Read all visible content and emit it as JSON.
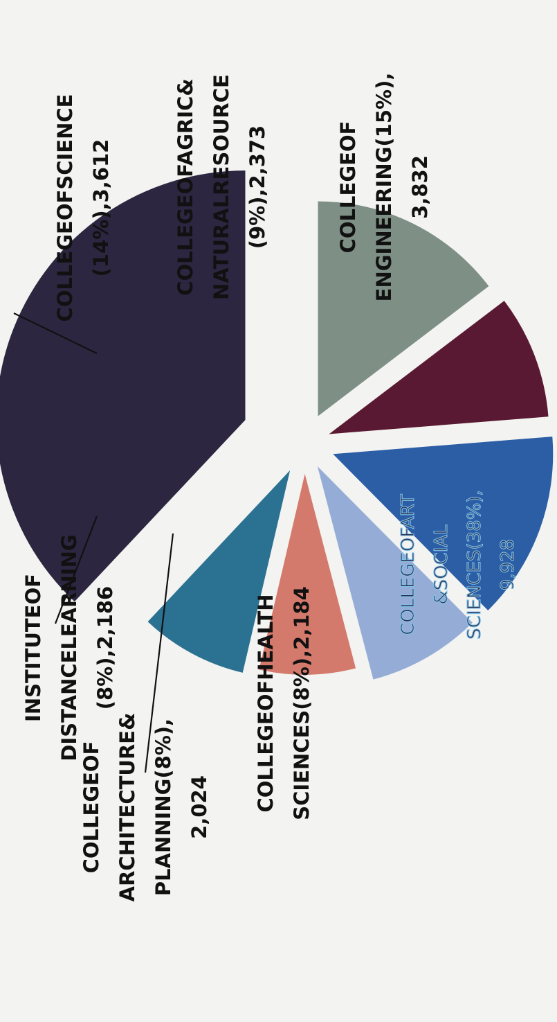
{
  "chart_data": {
    "type": "pie",
    "exploded": true,
    "slices": [
      {
        "label_lines": [
          "COLLEGEOF",
          "ENGINEERING(15%),",
          "3,832"
        ],
        "percent": 15,
        "value": 3832,
        "color": "#7e8f85"
      },
      {
        "label_lines": [
          "COLLEGEOFAGRIC&",
          "NATURALRESOURCE",
          "(9%),2,373"
        ],
        "percent": 9,
        "value": 2373,
        "color": "#5a1932"
      },
      {
        "label_lines": [
          "COLLEGEOFSCIENCE",
          "(14%),3,612"
        ],
        "percent": 14,
        "value": 3612,
        "color": "#2c5ea6"
      },
      {
        "label_lines": [
          "INSTITUTEOF",
          "DISTANCELEARNING",
          "(8%),2,186"
        ],
        "percent": 8,
        "value": 2186,
        "color": "#95add6"
      },
      {
        "label_lines": [
          "COLLEGEOF",
          "ARCHITECTURE&",
          "PLANNING(8%),",
          "2,024"
        ],
        "percent": 8,
        "value": 2024,
        "color": "#d47a6c"
      },
      {
        "label_lines": [
          "COLLEGEOFHEALTH",
          "SCIENCES(8%),2,184"
        ],
        "percent": 8,
        "value": 2184,
        "color": "#2b7191"
      },
      {
        "label_lines": [
          "COLLEGEOFART",
          "&SOCIAL",
          "SCIENCES(38%),",
          "9,928"
        ],
        "percent": 38,
        "value": 9928,
        "color": "#2c2640"
      }
    ]
  }
}
